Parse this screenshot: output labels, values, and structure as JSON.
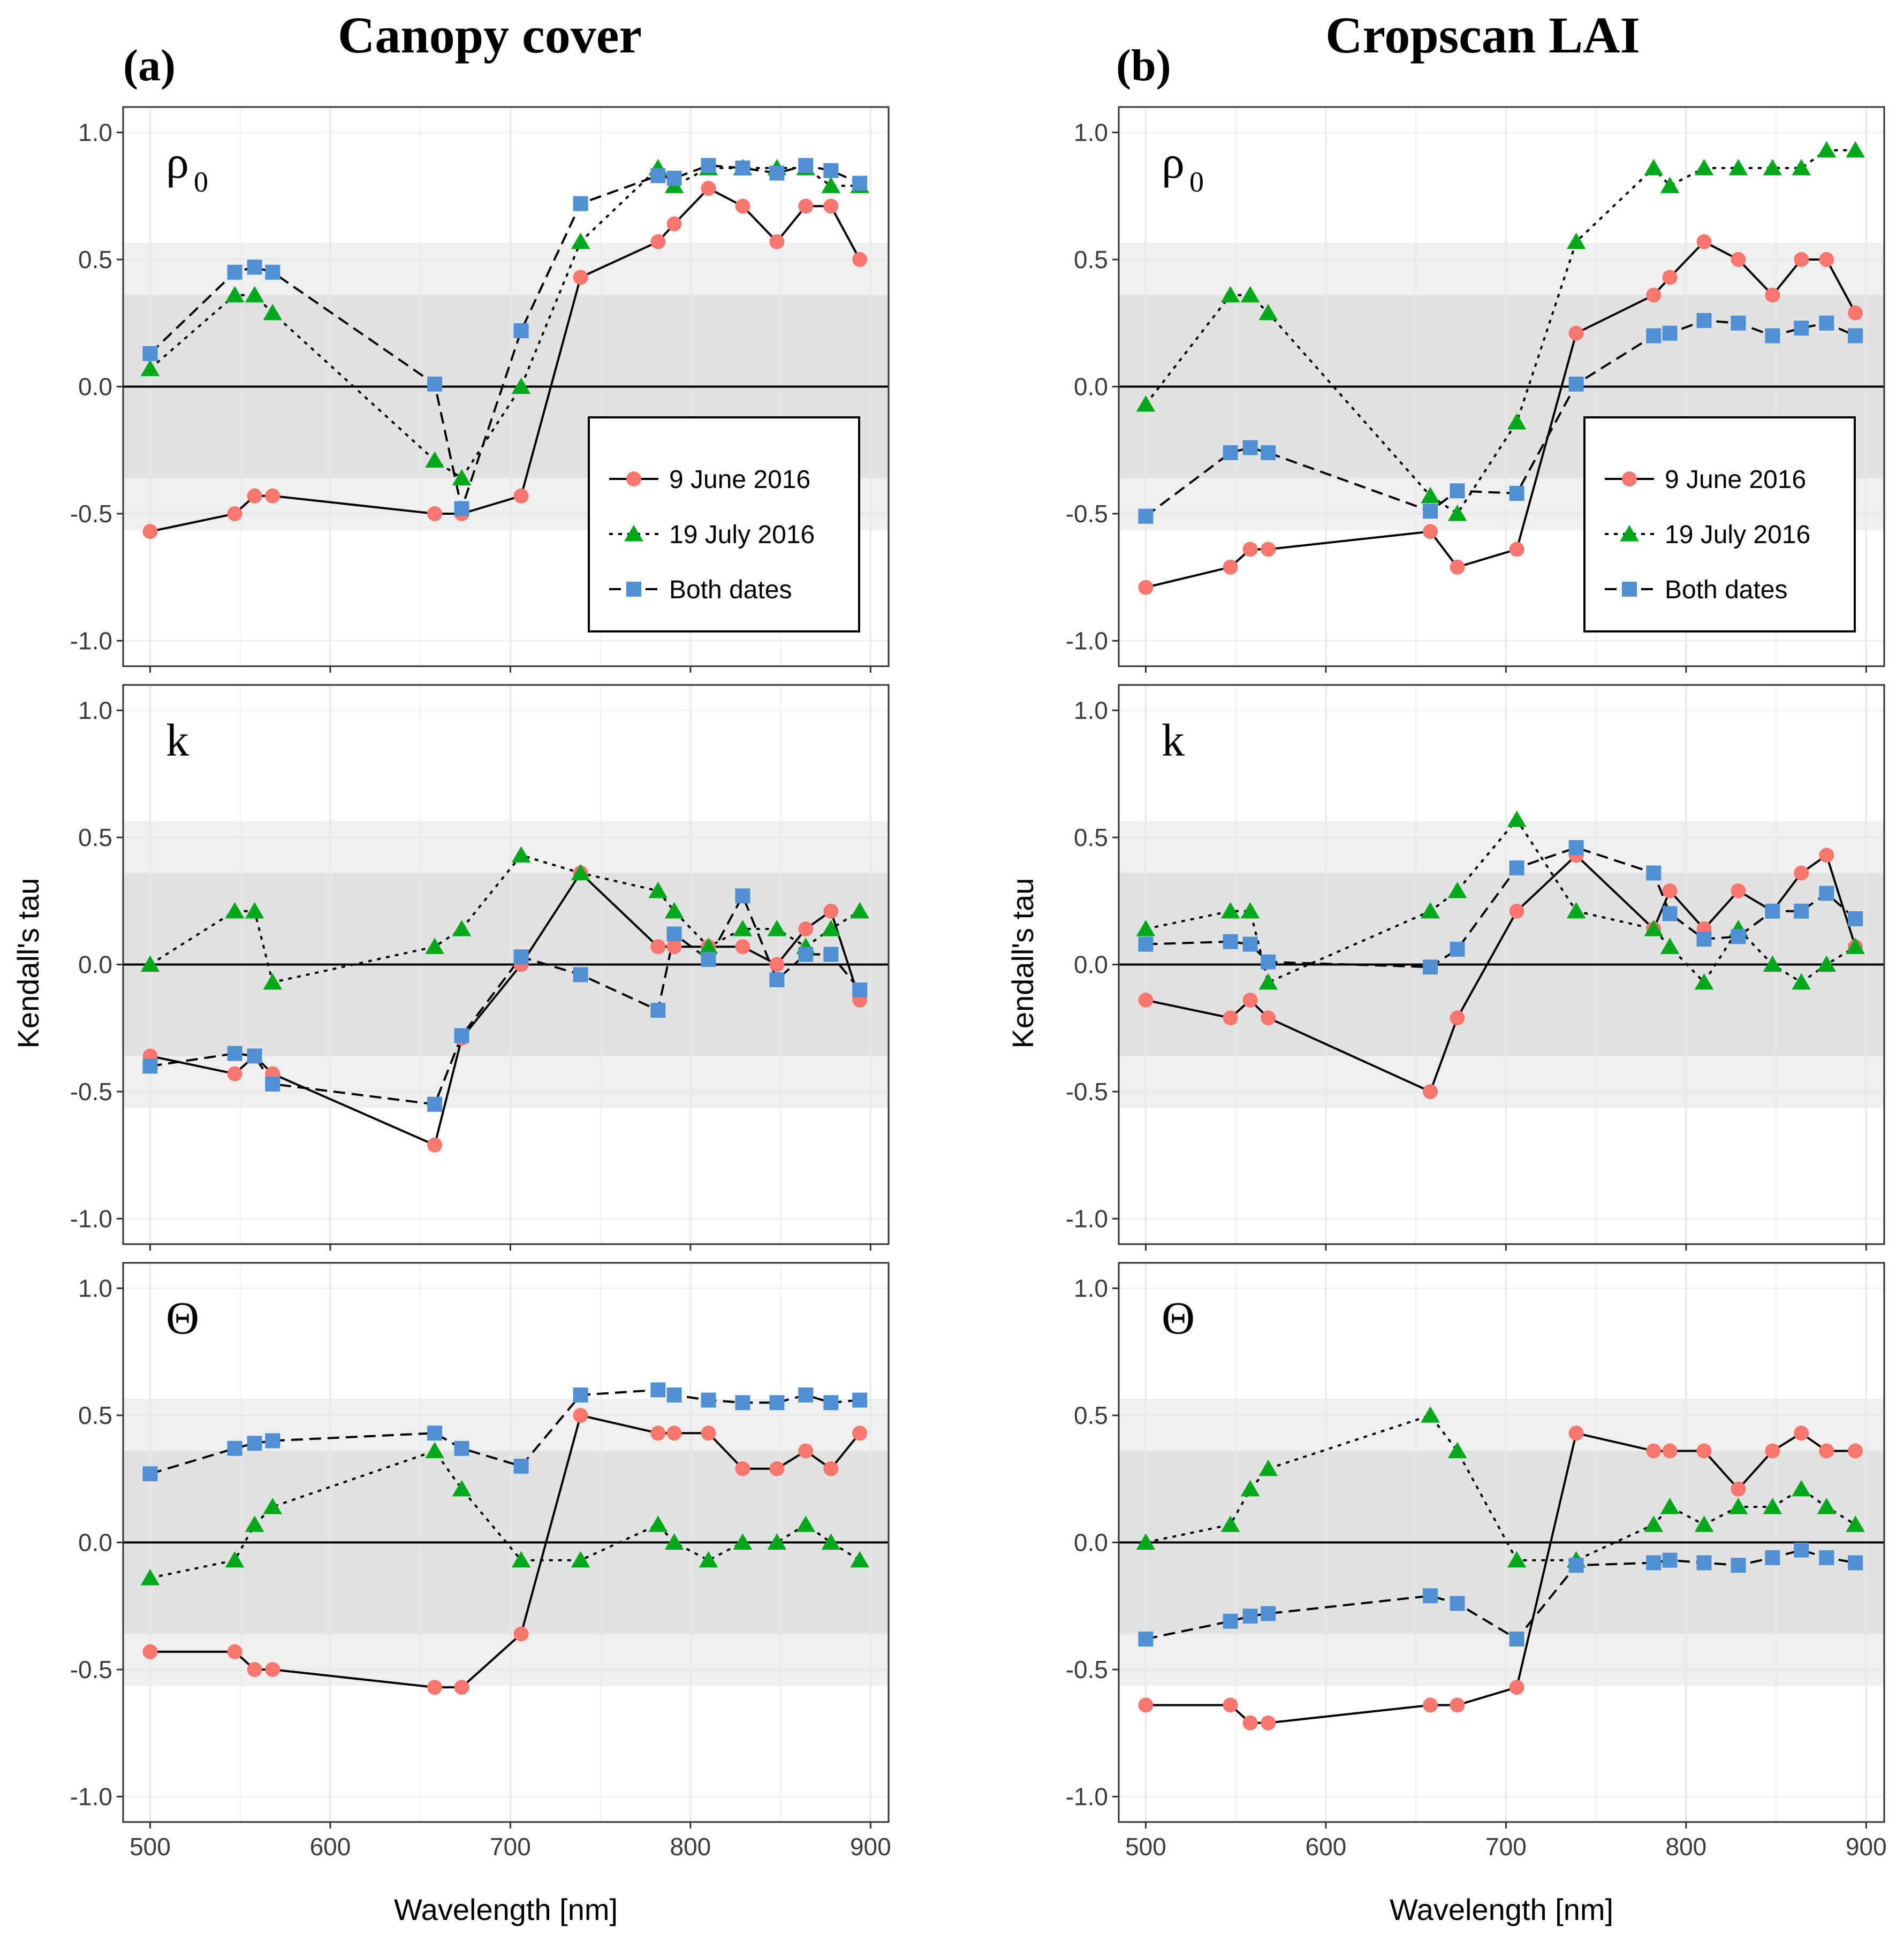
{
  "figure": {
    "columns": [
      {
        "letter": "(a)",
        "title": "Canopy cover"
      },
      {
        "letter": "(b)",
        "title": "Cropscan LAI"
      }
    ],
    "ylabel": "Kendall's tau",
    "xlabel": "Wavelength [nm]"
  },
  "colors": {
    "june": "#F8766D",
    "july": "#00A91A",
    "both": "#4F8FD4",
    "band_outer": "#EFEFEF",
    "band_inner": "#E2E2E2",
    "grid": "#E8E8E8"
  },
  "legend": [
    {
      "label": "9 June 2016",
      "series": "june"
    },
    {
      "label": "19 July 2016",
      "series": "july"
    },
    {
      "label": "Both dates",
      "series": "both"
    }
  ],
  "chart_data": [
    {
      "type": "line",
      "id": "a-rho",
      "column": "Canopy cover",
      "param": "ρ",
      "param_sub": "0",
      "xlabel": "Wavelength [nm]",
      "ylabel": "Kendall's tau",
      "xlim": [
        485,
        910
      ],
      "ylim": [
        -1.1,
        1.1
      ],
      "xticks": [
        500,
        600,
        700,
        800,
        900
      ],
      "yticks": [
        -1.0,
        -0.5,
        0.0,
        0.5,
        1.0
      ],
      "show_legend": true,
      "legend_position": "lower-right",
      "x": [
        500,
        547,
        558,
        568,
        658,
        673,
        706,
        739,
        782,
        791,
        810,
        829,
        848,
        864,
        878,
        894
      ],
      "series": [
        {
          "name": "9 June 2016",
          "key": "june",
          "values": [
            -0.57,
            -0.5,
            -0.43,
            -0.43,
            -0.5,
            -0.5,
            -0.43,
            0.43,
            0.57,
            0.64,
            0.78,
            0.71,
            0.57,
            0.71,
            0.71,
            0.5
          ]
        },
        {
          "name": "19 July 2016",
          "key": "july",
          "values": [
            0.07,
            0.36,
            0.36,
            0.29,
            -0.29,
            -0.36,
            0.0,
            0.57,
            0.86,
            0.79,
            0.86,
            0.86,
            0.86,
            0.86,
            0.79,
            0.79
          ]
        },
        {
          "name": "Both dates",
          "key": "both",
          "values": [
            0.13,
            0.45,
            0.47,
            0.45,
            0.01,
            -0.48,
            0.22,
            0.72,
            0.83,
            0.82,
            0.87,
            0.86,
            0.84,
            0.87,
            0.85,
            0.8
          ]
        }
      ]
    },
    {
      "type": "line",
      "id": "b-rho",
      "column": "Cropscan LAI",
      "param": "ρ",
      "param_sub": "0",
      "xlabel": "Wavelength [nm]",
      "ylabel": "Kendall's tau",
      "xlim": [
        485,
        910
      ],
      "ylim": [
        -1.1,
        1.1
      ],
      "xticks": [
        500,
        600,
        700,
        800,
        900
      ],
      "yticks": [
        -1.0,
        -0.5,
        0.0,
        0.5,
        1.0
      ],
      "show_legend": true,
      "legend_position": "lower-right",
      "x": [
        500,
        547,
        558,
        568,
        658,
        673,
        706,
        739,
        782,
        791,
        810,
        829,
        848,
        864,
        878,
        894
      ],
      "series": [
        {
          "name": "9 June 2016",
          "key": "june",
          "values": [
            -0.79,
            -0.71,
            -0.64,
            -0.64,
            -0.57,
            -0.71,
            -0.64,
            0.21,
            0.36,
            0.43,
            0.57,
            0.5,
            0.36,
            0.5,
            0.5,
            0.29
          ]
        },
        {
          "name": "19 July 2016",
          "key": "july",
          "values": [
            -0.07,
            0.36,
            0.36,
            0.29,
            -0.43,
            -0.5,
            -0.14,
            0.57,
            0.86,
            0.79,
            0.86,
            0.86,
            0.86,
            0.86,
            0.93,
            0.93
          ]
        },
        {
          "name": "Both dates",
          "key": "both",
          "values": [
            -0.51,
            -0.26,
            -0.24,
            -0.26,
            -0.49,
            -0.41,
            -0.42,
            0.01,
            0.2,
            0.21,
            0.26,
            0.25,
            0.2,
            0.23,
            0.25,
            0.2
          ]
        }
      ]
    },
    {
      "type": "line",
      "id": "a-k",
      "column": "Canopy cover",
      "param": "k",
      "param_sub": "",
      "xlabel": "Wavelength [nm]",
      "ylabel": "Kendall's tau",
      "xlim": [
        485,
        910
      ],
      "ylim": [
        -1.1,
        1.1
      ],
      "xticks": [
        500,
        600,
        700,
        800,
        900
      ],
      "yticks": [
        -1.0,
        -0.5,
        0.0,
        0.5,
        1.0
      ],
      "show_legend": false,
      "x": [
        500,
        547,
        558,
        568,
        658,
        673,
        706,
        739,
        782,
        791,
        810,
        829,
        848,
        864,
        878,
        894
      ],
      "series": [
        {
          "name": "9 June 2016",
          "key": "june",
          "values": [
            -0.36,
            -0.43,
            -0.36,
            -0.43,
            -0.71,
            -0.29,
            0.0,
            0.36,
            0.07,
            0.07,
            0.07,
            0.07,
            0.0,
            0.14,
            0.21,
            -0.14
          ]
        },
        {
          "name": "19 July 2016",
          "key": "july",
          "values": [
            0.0,
            0.21,
            0.21,
            -0.07,
            0.07,
            0.14,
            0.43,
            0.36,
            0.29,
            0.21,
            0.07,
            0.14,
            0.14,
            0.07,
            0.14,
            0.21
          ]
        },
        {
          "name": "Both dates",
          "key": "both",
          "values": [
            -0.4,
            -0.35,
            -0.36,
            -0.47,
            -0.55,
            -0.28,
            0.03,
            -0.04,
            -0.18,
            0.12,
            0.02,
            0.27,
            -0.06,
            0.04,
            0.04,
            -0.1
          ]
        }
      ]
    },
    {
      "type": "line",
      "id": "b-k",
      "column": "Cropscan LAI",
      "param": "k",
      "param_sub": "",
      "xlabel": "Wavelength [nm]",
      "ylabel": "Kendall's tau",
      "xlim": [
        485,
        910
      ],
      "ylim": [
        -1.1,
        1.1
      ],
      "xticks": [
        500,
        600,
        700,
        800,
        900
      ],
      "yticks": [
        -1.0,
        -0.5,
        0.0,
        0.5,
        1.0
      ],
      "show_legend": false,
      "x": [
        500,
        547,
        558,
        568,
        658,
        673,
        706,
        739,
        782,
        791,
        810,
        829,
        848,
        864,
        878,
        894
      ],
      "series": [
        {
          "name": "9 June 2016",
          "key": "june",
          "values": [
            -0.14,
            -0.21,
            -0.14,
            -0.21,
            -0.5,
            -0.21,
            0.21,
            0.43,
            0.14,
            0.29,
            0.14,
            0.29,
            0.21,
            0.36,
            0.43,
            0.07
          ]
        },
        {
          "name": "19 July 2016",
          "key": "july",
          "values": [
            0.14,
            0.21,
            0.21,
            -0.07,
            0.21,
            0.29,
            0.57,
            0.21,
            0.14,
            0.07,
            -0.07,
            0.14,
            0.0,
            -0.07,
            0.0,
            0.07
          ]
        },
        {
          "name": "Both dates",
          "key": "both",
          "values": [
            0.08,
            0.09,
            0.08,
            0.01,
            -0.01,
            0.06,
            0.38,
            0.46,
            0.36,
            0.2,
            0.1,
            0.11,
            0.21,
            0.21,
            0.28,
            0.18
          ]
        }
      ]
    },
    {
      "type": "line",
      "id": "a-theta",
      "column": "Canopy cover",
      "param": "Θ",
      "param_sub": "",
      "xlabel": "Wavelength [nm]",
      "ylabel": "Kendall's tau",
      "xlim": [
        485,
        910
      ],
      "ylim": [
        -1.1,
        1.1
      ],
      "xticks": [
        500,
        600,
        700,
        800,
        900
      ],
      "yticks": [
        -1.0,
        -0.5,
        0.0,
        0.5,
        1.0
      ],
      "show_legend": false,
      "x": [
        500,
        547,
        558,
        568,
        658,
        673,
        706,
        739,
        782,
        791,
        810,
        829,
        848,
        864,
        878,
        894
      ],
      "series": [
        {
          "name": "9 June 2016",
          "key": "june",
          "values": [
            -0.43,
            -0.43,
            -0.5,
            -0.5,
            -0.57,
            -0.57,
            -0.36,
            0.5,
            0.43,
            0.43,
            0.43,
            0.29,
            0.29,
            0.36,
            0.29,
            0.43
          ]
        },
        {
          "name": "19 July 2016",
          "key": "july",
          "values": [
            -0.14,
            -0.07,
            0.07,
            0.14,
            0.36,
            0.21,
            -0.07,
            -0.07,
            0.07,
            0.0,
            -0.07,
            0.0,
            0.0,
            0.07,
            0.0,
            -0.07
          ]
        },
        {
          "name": "Both dates",
          "key": "both",
          "values": [
            0.27,
            0.37,
            0.39,
            0.4,
            0.43,
            0.37,
            0.3,
            0.58,
            0.6,
            0.58,
            0.56,
            0.55,
            0.55,
            0.58,
            0.55,
            0.56
          ]
        }
      ]
    },
    {
      "type": "line",
      "id": "b-theta",
      "column": "Cropscan LAI",
      "param": "Θ",
      "param_sub": "",
      "xlabel": "Wavelength [nm]",
      "ylabel": "Kendall's tau",
      "xlim": [
        485,
        910
      ],
      "ylim": [
        -1.1,
        1.1
      ],
      "xticks": [
        500,
        600,
        700,
        800,
        900
      ],
      "yticks": [
        -1.0,
        -0.5,
        0.0,
        0.5,
        1.0
      ],
      "show_legend": false,
      "x": [
        500,
        547,
        558,
        568,
        658,
        673,
        706,
        739,
        782,
        791,
        810,
        829,
        848,
        864,
        878,
        894
      ],
      "series": [
        {
          "name": "9 June 2016",
          "key": "june",
          "values": [
            -0.64,
            -0.64,
            -0.71,
            -0.71,
            -0.64,
            -0.64,
            -0.57,
            0.43,
            0.36,
            0.36,
            0.36,
            0.21,
            0.36,
            0.43,
            0.36,
            0.36
          ]
        },
        {
          "name": "19 July 2016",
          "key": "july",
          "values": [
            0.0,
            0.07,
            0.21,
            0.29,
            0.5,
            0.36,
            -0.07,
            -0.07,
            0.07,
            0.14,
            0.07,
            0.14,
            0.14,
            0.21,
            0.14,
            0.07
          ]
        },
        {
          "name": "Both dates",
          "key": "both",
          "values": [
            -0.38,
            -0.31,
            -0.29,
            -0.28,
            -0.21,
            -0.24,
            -0.38,
            -0.09,
            -0.08,
            -0.07,
            -0.08,
            -0.09,
            -0.06,
            -0.03,
            -0.06,
            -0.08
          ]
        }
      ]
    }
  ]
}
